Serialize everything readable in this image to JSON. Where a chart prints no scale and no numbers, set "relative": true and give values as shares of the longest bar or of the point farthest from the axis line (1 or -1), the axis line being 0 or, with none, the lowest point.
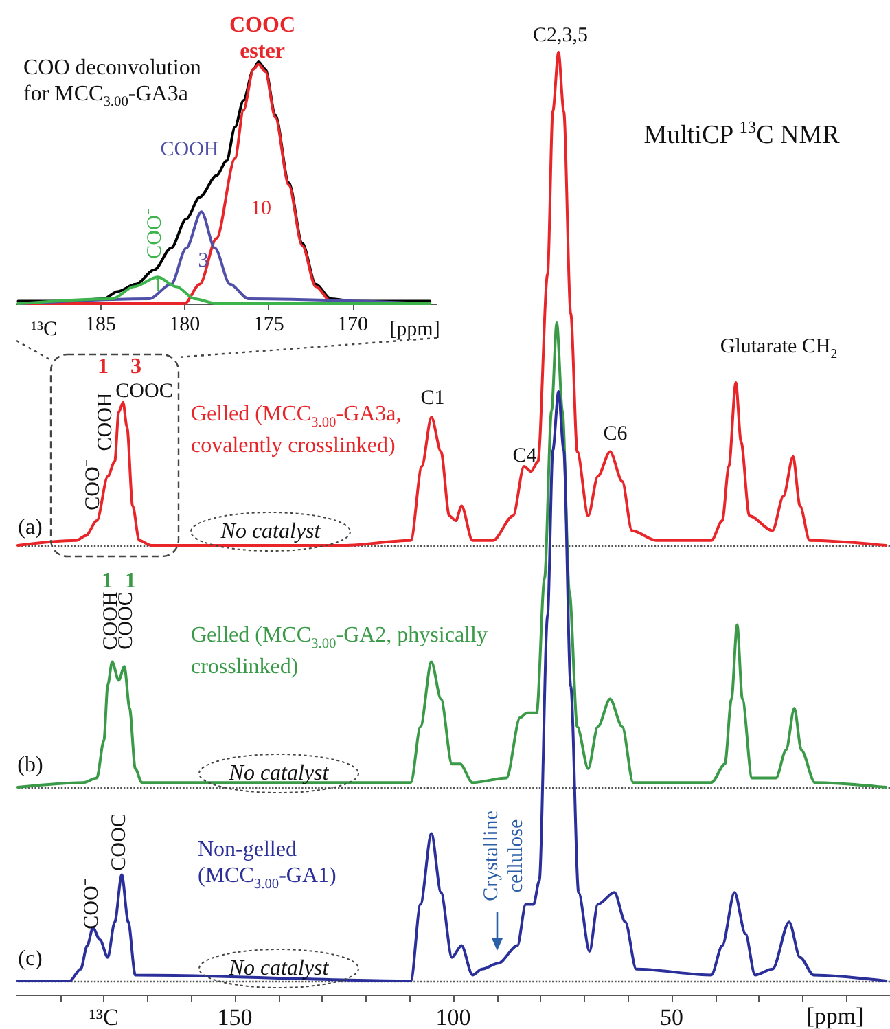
{
  "chart_data": [
    {
      "type": "line",
      "title": "COO deconvolution for MCC$_{3.00}$-GA3a",
      "xlabel": "[ppm]",
      "relative": true,
      "xlim": [
        190,
        165
      ],
      "xticks": [
        185,
        180,
        175,
        170
      ],
      "tick_labels": "x",
      "annotations": [
        "¹³C",
        "10",
        "3",
        "1"
      ],
      "series": [
        {
          "color": "#000000",
          "x": [
            189.9,
            186.9,
            184.8,
            184.0,
            182.9,
            181.8,
            180.8,
            179.9,
            179.1,
            178.1,
            177.5,
            177.0,
            176.5,
            175.9,
            175.6,
            175.2,
            174.6,
            173.8,
            173.0,
            172.2,
            171.3,
            170.0,
            165.4
          ],
          "values": [
            0.01,
            0.01,
            0.02,
            0.05,
            0.08,
            0.14,
            0.23,
            0.35,
            0.44,
            0.53,
            0.59,
            0.73,
            0.84,
            0.97,
            1.0,
            0.97,
            0.78,
            0.5,
            0.25,
            0.08,
            0.02,
            0.01,
            0.01
          ]
        },
        {
          "name": "COOC ester",
          "color": "#e8262a",
          "x": [
            189.9,
            180.0,
            179.1,
            178.1,
            177.0,
            176.5,
            175.9,
            175.6,
            175.2,
            174.6,
            173.8,
            173.0,
            172.2,
            171.3,
            170.0,
            165.4
          ],
          "values": [
            0,
            0,
            0.08,
            0.27,
            0.6,
            0.8,
            0.97,
            0.99,
            0.96,
            0.77,
            0.49,
            0.24,
            0.07,
            0.01,
            0,
            0
          ]
        },
        {
          "name": "COOH",
          "color": "#5050a8",
          "x": [
            189.9,
            182.1,
            180.8,
            179.9,
            179.0,
            178.2,
            177.3,
            176.2,
            165.4
          ],
          "values": [
            0,
            0.02,
            0.08,
            0.23,
            0.38,
            0.23,
            0.08,
            0.02,
            0
          ]
        },
        {
          "name": "COO⁻",
          "color": "#3cb44b",
          "x": [
            189.9,
            184.3,
            183.0,
            181.6,
            180.5,
            179.4,
            178.1,
            165.4
          ],
          "values": [
            0,
            0.02,
            0.07,
            0.11,
            0.07,
            0.02,
            0,
            0
          ]
        }
      ]
    },
    {
      "type": "line",
      "title": "MultiCP $^{13}$C NMR",
      "relative": true,
      "xlim": [
        200,
        0
      ],
      "tick_labels": false,
      "ref_lines": [
        {
          "axis": "y",
          "value": 0,
          "color": "#555555",
          "line_style": "dotted"
        }
      ],
      "annotations": [
        "(a)",
        "COO⁻",
        "COOH",
        "COOC",
        "1",
        "3",
        "No catalyst",
        "C1",
        "C4",
        "C2,3,5",
        "C6",
        "Glutarate CH$_{2}$"
      ],
      "series": [
        {
          "name": "Gelled (MCC$_{3.00}$-GA3a, covalently crosslinked)",
          "color": "#e8262a",
          "x": [
            199.7,
            186.3,
            184.1,
            181.6,
            179.1,
            177.5,
            176.6,
            175.6,
            174.7,
            173.4,
            171.9,
            169.1,
            125.3,
            109.7,
            107.2,
            105.0,
            102.8,
            100.9,
            99.4,
            98.1,
            95.6,
            90.9,
            86.3,
            83.8,
            82.2,
            80.6,
            78.4,
            77.2,
            75.9,
            74.7,
            73.1,
            71.6,
            69.1,
            66.9,
            64.1,
            61.3,
            59.1,
            53.4,
            40.9,
            38.4,
            36.9,
            35.3,
            34.1,
            32.2,
            26.9,
            24.4,
            22.2,
            20.6,
            18.4,
            0.9
          ],
          "values": [
            0,
            0.01,
            0.02,
            0.05,
            0.14,
            0.17,
            0.27,
            0.29,
            0.24,
            0.08,
            0.01,
            0,
            0,
            0.01,
            0.16,
            0.26,
            0.19,
            0.06,
            0.05,
            0.08,
            0.01,
            0.01,
            0.06,
            0.16,
            0.15,
            0.17,
            0.55,
            0.88,
            1.0,
            0.88,
            0.47,
            0.19,
            0.06,
            0.14,
            0.19,
            0.13,
            0.03,
            0.01,
            0.01,
            0.05,
            0.16,
            0.33,
            0.21,
            0.06,
            0.03,
            0.1,
            0.18,
            0.08,
            0.01,
            0
          ]
        }
      ]
    },
    {
      "type": "line",
      "relative": true,
      "xlim": [
        200,
        0
      ],
      "tick_labels": false,
      "ref_lines": [
        {
          "axis": "y",
          "value": 0,
          "color": "#555555",
          "line_style": "dotted"
        }
      ],
      "annotations": [
        "(b)",
        "COOH",
        "COOC",
        "1",
        "1",
        "No catalyst"
      ],
      "series": [
        {
          "name": "Gelled (MCC$_{3.00}$-GA2, physically crosslinked)",
          "color": "#3a9a48",
          "x": [
            199.7,
            184.7,
            181.6,
            180.0,
            179.1,
            178.1,
            176.6,
            175.3,
            174.1,
            172.8,
            171.3,
            109.7,
            107.5,
            105.0,
            102.8,
            100.3,
            98.4,
            95.6,
            87.8,
            84.7,
            83.1,
            80.9,
            79.1,
            77.5,
            76.3,
            75.0,
            73.4,
            71.6,
            69.1,
            66.9,
            64.1,
            61.3,
            58.8,
            40.9,
            37.8,
            36.3,
            35.0,
            33.8,
            31.6,
            26.1,
            23.8,
            21.9,
            20.3,
            17.2,
            0.9
          ],
          "values": [
            0,
            0.01,
            0.02,
            0.1,
            0.22,
            0.27,
            0.23,
            0.26,
            0.17,
            0.04,
            0.01,
            0.01,
            0.13,
            0.27,
            0.19,
            0.05,
            0.05,
            0.01,
            0.02,
            0.15,
            0.16,
            0.16,
            0.45,
            0.81,
            1.0,
            0.81,
            0.42,
            0.13,
            0.04,
            0.13,
            0.19,
            0.13,
            0.01,
            0.01,
            0.05,
            0.19,
            0.35,
            0.19,
            0.02,
            0.02,
            0.08,
            0.17,
            0.08,
            0.01,
            0
          ]
        }
      ]
    },
    {
      "type": "line",
      "xlabel": "[ppm]",
      "relative": true,
      "xlim": [
        200,
        0
      ],
      "xticks": [
        {
          "value": 190,
          "label": null
        },
        {
          "value": 180,
          "label": "¹³C"
        },
        {
          "value": 170,
          "label": null
        },
        {
          "value": 160,
          "label": null
        },
        150,
        {
          "value": 140,
          "label": null
        },
        {
          "value": 130,
          "label": null
        },
        {
          "value": 120,
          "label": null
        },
        {
          "value": 110,
          "label": null
        },
        100,
        {
          "value": 90,
          "label": null
        },
        {
          "value": 80,
          "label": null
        },
        {
          "value": 70,
          "label": null
        },
        {
          "value": 60,
          "label": null
        },
        50,
        {
          "value": 40,
          "label": null
        },
        {
          "value": 30,
          "label": null
        },
        {
          "value": 20,
          "label": null
        },
        {
          "value": 10,
          "label": null
        }
      ],
      "tick_labels": "x",
      "ref_lines": [
        {
          "axis": "y",
          "value": 0,
          "color": "#555555",
          "line_style": "dotted"
        }
      ],
      "annotations": [
        "(c)",
        "COO⁻",
        "COOC",
        "Crystalline cellulose",
        "No catalyst"
      ],
      "series": [
        {
          "name": "Non-gelled (MCC$_{3.00}$-GA1)",
          "color": "#2b2f9a",
          "x": [
            199.7,
            187.8,
            185.3,
            183.8,
            182.5,
            180.9,
            179.1,
            177.5,
            175.9,
            174.4,
            172.8,
            109.7,
            107.5,
            105.0,
            102.8,
            100.3,
            98.1,
            95.6,
            93.4,
            89.7,
            85.3,
            83.4,
            81.6,
            80.3,
            78.4,
            77.2,
            75.9,
            74.7,
            73.1,
            71.3,
            68.8,
            66.9,
            63.1,
            60.6,
            58.1,
            40.9,
            38.4,
            35.6,
            33.1,
            30.9,
            26.9,
            23.1,
            20.6,
            17.5,
            0.9
          ],
          "values": [
            0,
            0,
            0.02,
            0.06,
            0.09,
            0.07,
            0.04,
            0.1,
            0.18,
            0.1,
            0.01,
            0,
            0.13,
            0.25,
            0.15,
            0.04,
            0.06,
            0.01,
            0.02,
            0.03,
            0.06,
            0.13,
            0.13,
            0.17,
            0.62,
            0.9,
            1.0,
            0.9,
            0.5,
            0.15,
            0.05,
            0.13,
            0.15,
            0.1,
            0.02,
            0.01,
            0.06,
            0.15,
            0.08,
            0.01,
            0.02,
            0.1,
            0.04,
            0.01,
            0
          ]
        }
      ]
    }
  ]
}
